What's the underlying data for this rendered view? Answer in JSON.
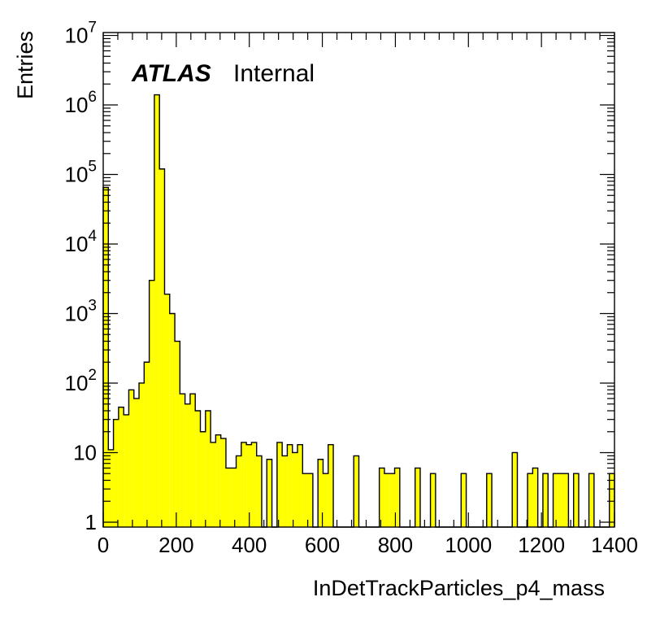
{
  "chart_data": {
    "type": "histogram",
    "title": "",
    "xlabel": "InDetTrackParticles_p4_mass",
    "ylabel": "Entries",
    "xlim": [
      0,
      1400
    ],
    "ylim": [
      0.85,
      11000000
    ],
    "yscale": "log",
    "grid": false,
    "bin_width": 14,
    "fill_color": "#ffff00",
    "x_ticks": [
      "0",
      "200",
      "400",
      "600",
      "800",
      "1000",
      "1200",
      "1400"
    ],
    "y_ticks": [
      {
        "base": "1",
        "exp": ""
      },
      {
        "base": "10",
        "exp": ""
      },
      {
        "base": "10",
        "exp": "2"
      },
      {
        "base": "10",
        "exp": "3"
      },
      {
        "base": "10",
        "exp": "4"
      },
      {
        "base": "10",
        "exp": "5"
      },
      {
        "base": "10",
        "exp": "6"
      },
      {
        "base": "10",
        "exp": "7"
      }
    ],
    "annotation": {
      "bold": "ATLAS",
      "text": "Internal"
    },
    "bins": [
      {
        "x": 0,
        "y": 65000
      },
      {
        "x": 14,
        "y": 11
      },
      {
        "x": 28,
        "y": 30
      },
      {
        "x": 42,
        "y": 45
      },
      {
        "x": 56,
        "y": 35
      },
      {
        "x": 70,
        "y": 80
      },
      {
        "x": 84,
        "y": 60
      },
      {
        "x": 98,
        "y": 100
      },
      {
        "x": 112,
        "y": 200
      },
      {
        "x": 126,
        "y": 3000
      },
      {
        "x": 140,
        "y": 1400000
      },
      {
        "x": 154,
        "y": 120000
      },
      {
        "x": 168,
        "y": 1900
      },
      {
        "x": 182,
        "y": 1000
      },
      {
        "x": 196,
        "y": 400
      },
      {
        "x": 210,
        "y": 70
      },
      {
        "x": 224,
        "y": 50
      },
      {
        "x": 238,
        "y": 70
      },
      {
        "x": 252,
        "y": 40
      },
      {
        "x": 266,
        "y": 20
      },
      {
        "x": 280,
        "y": 40
      },
      {
        "x": 294,
        "y": 14
      },
      {
        "x": 308,
        "y": 18
      },
      {
        "x": 322,
        "y": 16
      },
      {
        "x": 336,
        "y": 6
      },
      {
        "x": 350,
        "y": 6
      },
      {
        "x": 364,
        "y": 9
      },
      {
        "x": 378,
        "y": 14
      },
      {
        "x": 392,
        "y": 13
      },
      {
        "x": 406,
        "y": 14
      },
      {
        "x": 420,
        "y": 9
      },
      {
        "x": 434,
        "y": 0
      },
      {
        "x": 448,
        "y": 8
      },
      {
        "x": 462,
        "y": 0
      },
      {
        "x": 476,
        "y": 14
      },
      {
        "x": 490,
        "y": 9
      },
      {
        "x": 504,
        "y": 13
      },
      {
        "x": 518,
        "y": 10
      },
      {
        "x": 532,
        "y": 13
      },
      {
        "x": 546,
        "y": 5
      },
      {
        "x": 560,
        "y": 5
      },
      {
        "x": 574,
        "y": 0
      },
      {
        "x": 588,
        "y": 8
      },
      {
        "x": 602,
        "y": 5
      },
      {
        "x": 616,
        "y": 13
      },
      {
        "x": 630,
        "y": 0
      },
      {
        "x": 644,
        "y": 0
      },
      {
        "x": 658,
        "y": 0
      },
      {
        "x": 672,
        "y": 0
      },
      {
        "x": 686,
        "y": 9
      },
      {
        "x": 700,
        "y": 0
      },
      {
        "x": 714,
        "y": 0
      },
      {
        "x": 728,
        "y": 0
      },
      {
        "x": 742,
        "y": 0
      },
      {
        "x": 756,
        "y": 6
      },
      {
        "x": 770,
        "y": 5
      },
      {
        "x": 784,
        "y": 5
      },
      {
        "x": 798,
        "y": 6
      },
      {
        "x": 812,
        "y": 0
      },
      {
        "x": 826,
        "y": 0
      },
      {
        "x": 840,
        "y": 0
      },
      {
        "x": 854,
        "y": 6
      },
      {
        "x": 868,
        "y": 0
      },
      {
        "x": 882,
        "y": 0
      },
      {
        "x": 896,
        "y": 5
      },
      {
        "x": 910,
        "y": 0
      },
      {
        "x": 924,
        "y": 0
      },
      {
        "x": 938,
        "y": 0
      },
      {
        "x": 952,
        "y": 0
      },
      {
        "x": 966,
        "y": 0
      },
      {
        "x": 980,
        "y": 5
      },
      {
        "x": 994,
        "y": 0
      },
      {
        "x": 1008,
        "y": 0
      },
      {
        "x": 1022,
        "y": 0
      },
      {
        "x": 1036,
        "y": 0
      },
      {
        "x": 1050,
        "y": 5
      },
      {
        "x": 1064,
        "y": 0
      },
      {
        "x": 1078,
        "y": 0
      },
      {
        "x": 1092,
        "y": 0
      },
      {
        "x": 1106,
        "y": 0
      },
      {
        "x": 1120,
        "y": 10
      },
      {
        "x": 1134,
        "y": 0
      },
      {
        "x": 1148,
        "y": 0
      },
      {
        "x": 1162,
        "y": 5
      },
      {
        "x": 1176,
        "y": 6
      },
      {
        "x": 1190,
        "y": 0
      },
      {
        "x": 1204,
        "y": 5
      },
      {
        "x": 1218,
        "y": 0
      },
      {
        "x": 1232,
        "y": 5
      },
      {
        "x": 1246,
        "y": 5
      },
      {
        "x": 1260,
        "y": 5
      },
      {
        "x": 1274,
        "y": 0
      },
      {
        "x": 1288,
        "y": 5
      },
      {
        "x": 1302,
        "y": 0
      },
      {
        "x": 1316,
        "y": 0
      },
      {
        "x": 1330,
        "y": 5
      },
      {
        "x": 1344,
        "y": 0
      },
      {
        "x": 1358,
        "y": 0
      },
      {
        "x": 1372,
        "y": 0
      },
      {
        "x": 1386,
        "y": 5
      }
    ]
  }
}
